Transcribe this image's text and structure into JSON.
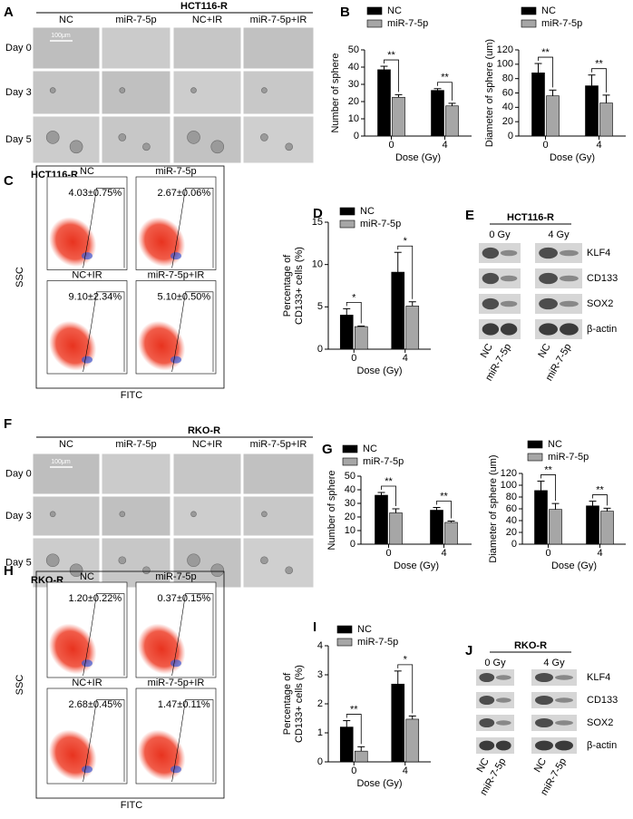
{
  "panels": {
    "A": {
      "letter": "A",
      "title": "HCT116-R",
      "columns": [
        "NC",
        "miR-7-5p",
        "NC+IR",
        "miR-7-5p+IR"
      ],
      "rows": [
        "Day 0",
        "Day 3",
        "Day 5"
      ],
      "scale_bar": "100μm"
    },
    "B": {
      "letter": "B"
    },
    "C": {
      "letter": "C",
      "cell_line": "HCT116-R",
      "plots": [
        {
          "label": "NC",
          "value": "4.03±0.75%"
        },
        {
          "label": "miR-7-5p",
          "value": "2.67±0.06%"
        },
        {
          "label": "NC+IR",
          "value": "9.10±2.34%"
        },
        {
          "label": "miR-7-5p+IR",
          "value": "5.10±0.50%"
        }
      ],
      "y_label": "SSC",
      "x_label": "FITC"
    },
    "D": {
      "letter": "D"
    },
    "E": {
      "letter": "E",
      "cell_line": "HCT116-R",
      "doses": [
        "0 Gy",
        "4 Gy"
      ],
      "proteins": [
        "KLF4",
        "CD133",
        "SOX2",
        "β-actin"
      ],
      "lanes": [
        "NC",
        "miR-7-5p",
        "NC",
        "miR-7-5p"
      ]
    },
    "F": {
      "letter": "F",
      "title": "RKO-R",
      "columns": [
        "NC",
        "miR-7-5p",
        "NC+IR",
        "miR-7-5p+IR"
      ],
      "rows": [
        "Day 0",
        "Day 3",
        "Day 5"
      ],
      "scale_bar": "100μm"
    },
    "G": {
      "letter": "G"
    },
    "H": {
      "letter": "H",
      "cell_line": "RKO-R",
      "plots": [
        {
          "label": "NC",
          "value": "1.20±0.22%"
        },
        {
          "label": "miR-7-5p",
          "value": "0.37±0.15%"
        },
        {
          "label": "NC+IR",
          "value": "2.68±0.45%"
        },
        {
          "label": "miR-7-5p+IR",
          "value": "1.47±0.11%"
        }
      ],
      "y_label": "SSC",
      "x_label": "FITC"
    },
    "I": {
      "letter": "I"
    },
    "J": {
      "letter": "J",
      "cell_line": "RKO-R",
      "doses": [
        "0 Gy",
        "4 Gy"
      ],
      "proteins": [
        "KLF4",
        "CD133",
        "SOX2",
        "β-actin"
      ],
      "lanes": [
        "NC",
        "miR-7-5p",
        "NC",
        "miR-7-5p"
      ]
    }
  },
  "chart_data": [
    {
      "type": "bar",
      "categories": [
        "0",
        "4"
      ],
      "xlabel": "Dose (Gy)",
      "ylabel": [
        "Number of sphere"
      ],
      "ylim": [
        0,
        50
      ],
      "yticks": [
        0,
        10,
        20,
        30,
        40,
        50
      ],
      "series": [
        {
          "name": "NC",
          "color": "#000000",
          "values": [
            38.5,
            26.5
          ],
          "errors": [
            2,
            1
          ]
        },
        {
          "name": "miR-7-5p",
          "color": "#a6a6a6",
          "values": [
            22.5,
            17.5
          ],
          "errors": [
            1.5,
            1.5
          ]
        }
      ],
      "annotations": [
        "**",
        "**"
      ]
    },
    {
      "type": "bar",
      "categories": [
        "0",
        "4"
      ],
      "xlabel": "Dose (Gy)",
      "ylabel": [
        "Diameter of sphere (um)"
      ],
      "ylim": [
        0,
        120
      ],
      "yticks": [
        0,
        20,
        40,
        60,
        80,
        100,
        120
      ],
      "series": [
        {
          "name": "NC",
          "color": "#000000",
          "values": [
            88,
            70
          ],
          "errors": [
            13,
            15
          ]
        },
        {
          "name": "miR-7-5p",
          "color": "#a6a6a6",
          "values": [
            56,
            46
          ],
          "errors": [
            8,
            11
          ]
        }
      ],
      "annotations": [
        "**",
        "**"
      ]
    },
    {
      "type": "bar",
      "categories": [
        "0",
        "4"
      ],
      "xlabel": "Dose (Gy)",
      "ylabel": [
        "Percentage of",
        "CD133+ cells (%)"
      ],
      "ylim": [
        0,
        15
      ],
      "yticks": [
        0,
        5,
        10,
        15
      ],
      "series": [
        {
          "name": "NC",
          "color": "#000000",
          "values": [
            4.03,
            9.1
          ],
          "errors": [
            0.75,
            2.34
          ]
        },
        {
          "name": "miR-7-5p",
          "color": "#a6a6a6",
          "values": [
            2.67,
            5.1
          ],
          "errors": [
            0.06,
            0.5
          ]
        }
      ],
      "annotations": [
        "*",
        "*"
      ]
    },
    {
      "type": "bar",
      "categories": [
        "0",
        "4"
      ],
      "xlabel": "Dose (Gy)",
      "ylabel": [
        "Number of sphere"
      ],
      "ylim": [
        0,
        50
      ],
      "yticks": [
        0,
        10,
        20,
        30,
        40,
        50
      ],
      "series": [
        {
          "name": "NC",
          "color": "#000000",
          "values": [
            36,
            25
          ],
          "errors": [
            2,
            2
          ]
        },
        {
          "name": "miR-7-5p",
          "color": "#a6a6a6",
          "values": [
            23,
            16
          ],
          "errors": [
            3,
            1
          ]
        }
      ],
      "annotations": [
        "**",
        "**"
      ]
    },
    {
      "type": "bar",
      "categories": [
        "0",
        "4"
      ],
      "xlabel": "Dose (Gy)",
      "ylabel": [
        "Diameter of sphere (um)"
      ],
      "ylim": [
        0,
        120
      ],
      "yticks": [
        0,
        20,
        40,
        60,
        80,
        100,
        120
      ],
      "series": [
        {
          "name": "NC",
          "color": "#000000",
          "values": [
            91,
            65
          ],
          "errors": [
            16,
            8
          ]
        },
        {
          "name": "miR-7-5p",
          "color": "#a6a6a6",
          "values": [
            59,
            56
          ],
          "errors": [
            10,
            5
          ]
        }
      ],
      "annotations": [
        "**",
        "**"
      ]
    },
    {
      "type": "bar",
      "categories": [
        "0",
        "4"
      ],
      "xlabel": "Dose (Gy)",
      "ylabel": [
        "Percentage of",
        "CD133+ cells (%)"
      ],
      "ylim": [
        0,
        4
      ],
      "yticks": [
        0,
        1,
        2,
        3,
        4
      ],
      "series": [
        {
          "name": "NC",
          "color": "#000000",
          "values": [
            1.2,
            2.68
          ],
          "errors": [
            0.22,
            0.45
          ]
        },
        {
          "name": "miR-7-5p",
          "color": "#a6a6a6",
          "values": [
            0.37,
            1.47
          ],
          "errors": [
            0.15,
            0.11
          ]
        }
      ],
      "annotations": [
        "**",
        "*"
      ]
    }
  ]
}
